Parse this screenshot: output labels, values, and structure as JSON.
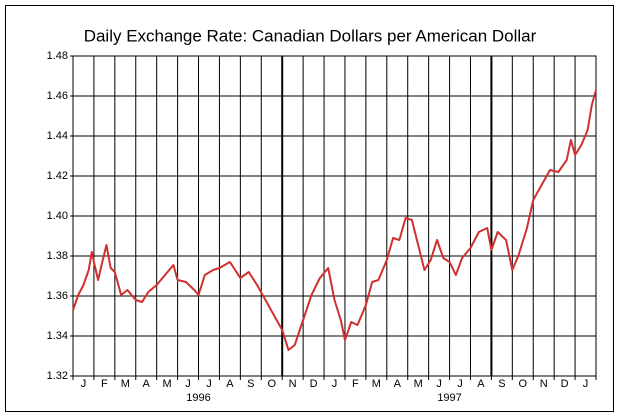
{
  "chart_data": {
    "type": "line",
    "title": "Daily Exchange Rate: Canadian Dollars per American Dollar",
    "categories": [
      "J",
      "F",
      "M",
      "A",
      "M",
      "J",
      "J",
      "A",
      "S",
      "O",
      "N",
      "D",
      "J",
      "F",
      "M",
      "A",
      "M",
      "J",
      "J",
      "A",
      "S",
      "O",
      "N",
      "D",
      "J"
    ],
    "year_labels": [
      "1996",
      "1997"
    ],
    "xlim": [
      0,
      25
    ],
    "xticks": [
      0,
      1,
      2,
      3,
      4,
      5,
      6,
      7,
      8,
      9,
      10,
      11,
      12,
      13,
      14,
      15,
      16,
      17,
      18,
      19,
      20,
      21,
      22,
      23,
      24,
      25
    ],
    "xmajor": [
      10,
      20
    ],
    "ylim": [
      1.32,
      1.48
    ],
    "yticks": [
      1.32,
      1.34,
      1.36,
      1.38,
      {
        "value": 1.4,
        "label": "1.40"
      },
      1.42,
      1.44,
      1.46,
      1.48
    ],
    "grid": true,
    "series": [
      {
        "color": "#d03030",
        "x": [
          0,
          0.25,
          0.5,
          0.75,
          0.9,
          1.0,
          1.2,
          1.4,
          1.6,
          1.8,
          2.0,
          2.3,
          2.6,
          3.0,
          3.3,
          3.6,
          4.0,
          4.4,
          4.8,
          5.0,
          5.4,
          5.8,
          6.0,
          6.3,
          6.7,
          7.0,
          7.5,
          8.0,
          8.4,
          8.8,
          9.2,
          9.6,
          10.0,
          10.3,
          10.6,
          11.0,
          11.4,
          11.8,
          12.2,
          12.5,
          12.8,
          13.0,
          13.3,
          13.6,
          14.0,
          14.3,
          14.6,
          15.0,
          15.3,
          15.6,
          15.9,
          16.2,
          16.5,
          16.8,
          17.1,
          17.4,
          17.7,
          18.0,
          18.3,
          18.6,
          19.0,
          19.4,
          19.8,
          20.0,
          20.3,
          20.7,
          21.0,
          21.3,
          21.7,
          22.0,
          22.4,
          22.8,
          23.2,
          23.6,
          23.8,
          24.0,
          24.3,
          24.6,
          24.8,
          25.0
        ],
        "values": [
          1.353,
          1.3605,
          1.3655,
          1.373,
          1.382,
          1.377,
          1.368,
          1.377,
          1.3855,
          1.374,
          1.372,
          1.3605,
          1.363,
          1.358,
          1.357,
          1.362,
          1.3655,
          1.3705,
          1.3755,
          1.368,
          1.367,
          1.363,
          1.3605,
          1.3705,
          1.373,
          1.374,
          1.377,
          1.369,
          1.372,
          1.3655,
          1.358,
          1.3505,
          1.343,
          1.333,
          1.3355,
          1.348,
          1.3605,
          1.369,
          1.374,
          1.358,
          1.348,
          1.338,
          1.347,
          1.3455,
          1.3555,
          1.367,
          1.368,
          1.378,
          1.389,
          1.388,
          1.399,
          1.398,
          1.3855,
          1.373,
          1.378,
          1.388,
          1.379,
          1.377,
          1.3705,
          1.379,
          1.384,
          1.392,
          1.394,
          1.383,
          1.392,
          1.388,
          1.373,
          1.3805,
          1.394,
          1.408,
          1.4155,
          1.423,
          1.422,
          1.428,
          1.438,
          1.4305,
          1.4355,
          1.443,
          1.4555,
          1.463
        ]
      }
    ]
  }
}
